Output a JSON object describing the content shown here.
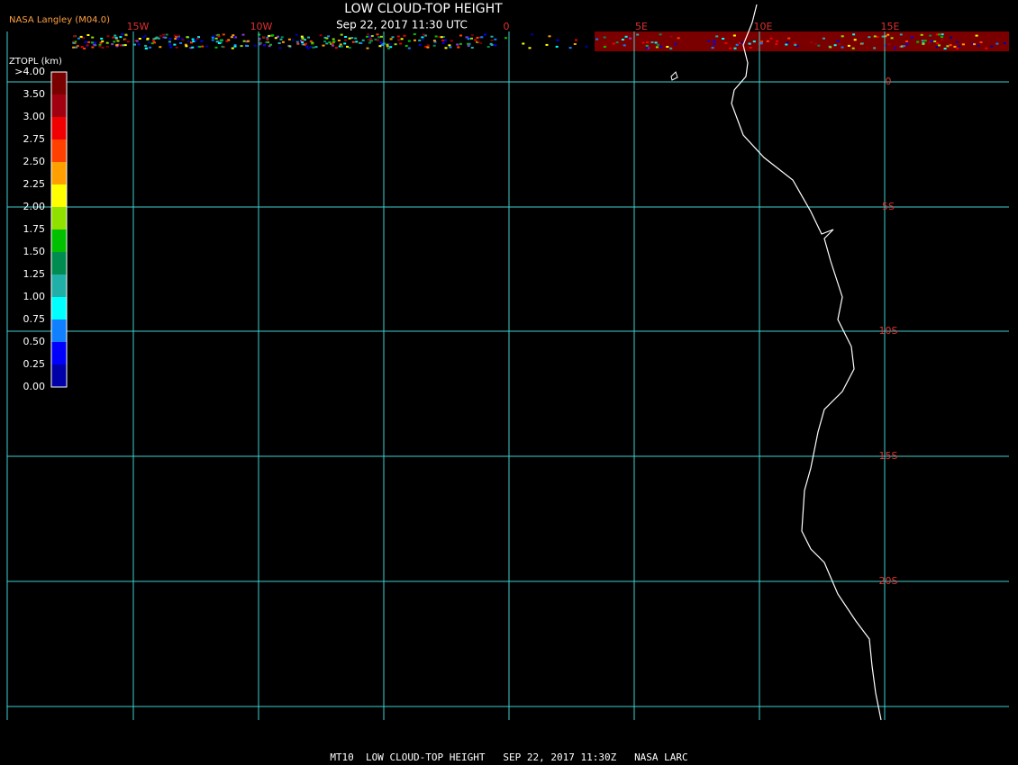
{
  "header": {
    "source": "NASA Langley (M04.0)",
    "title": "LOW CLOUD-TOP HEIGHT",
    "subtitle": "Sep 22, 2017 11:30 UTC"
  },
  "map": {
    "lon_labels": [
      "15W",
      "10W",
      "0",
      "5E",
      "10E",
      "15E"
    ],
    "lat_labels": [
      "0",
      "5S",
      "10S",
      "15S",
      "20S"
    ]
  },
  "legend": {
    "title": "ZTOPL (km)",
    "labels": [
      ">4.00",
      "3.50",
      "3.00",
      "2.75",
      "2.50",
      "2.25",
      "2.00",
      "1.75",
      "1.50",
      "1.25",
      "1.00",
      "0.75",
      "0.50",
      "0.25",
      "0.00"
    ],
    "colors": [
      "#7a0000",
      "#a00010",
      "#f00000",
      "#ff4000",
      "#ffa000",
      "#ffff00",
      "#90e000",
      "#00c000",
      "#008c50",
      "#20b0a8",
      "#00ffff",
      "#1080ff",
      "#0000ff",
      "#0000a8",
      "#8a3ad8"
    ]
  },
  "footer": "MT10  LOW CLOUD-TOP HEIGHT   SEP 22, 2017 11:30Z   NASA LARC"
}
